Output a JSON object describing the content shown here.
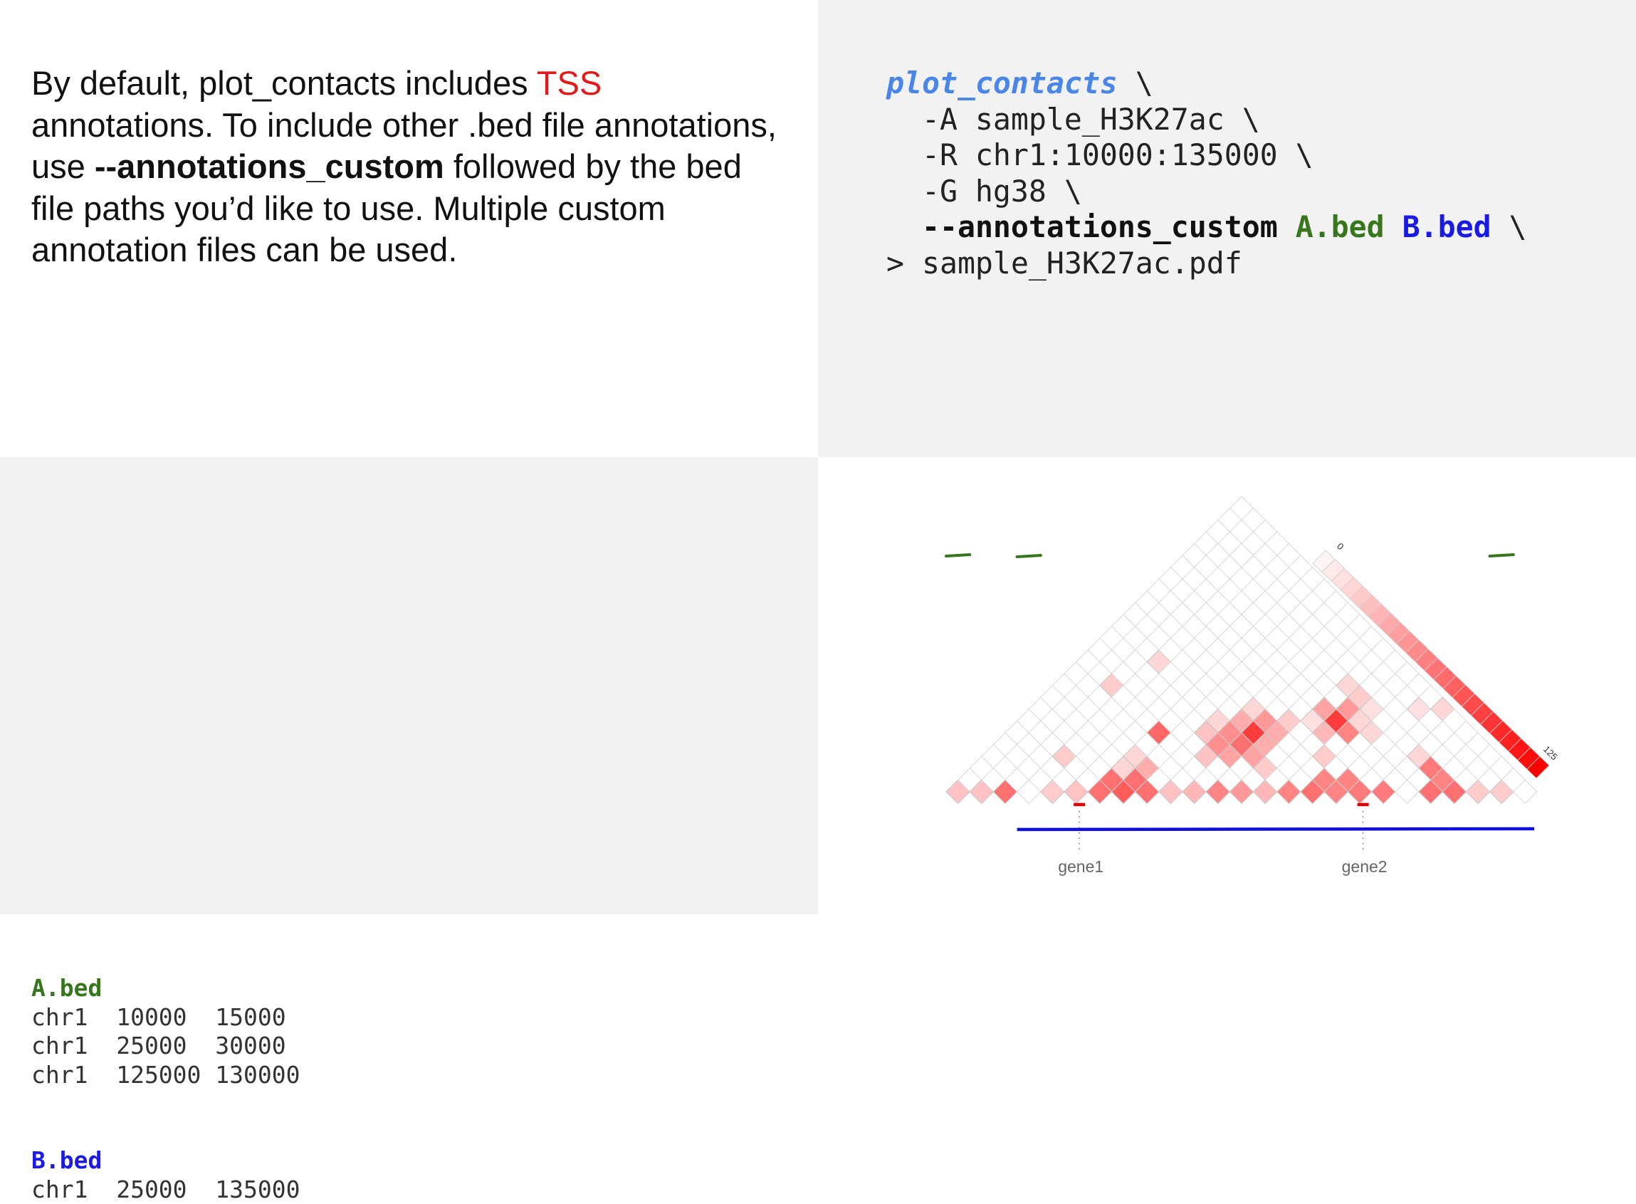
{
  "description": {
    "part1": "By default, plot_contacts includes ",
    "tss": "TSS",
    "part2": " annotations. To include other .bed file annotations, use ",
    "option": "--annotations_custom",
    "part3": " followed by the bed file paths you’d like to use. Multiple custom annotation files can be used."
  },
  "command": {
    "program": "plot_contacts",
    "cont": " \\",
    "line2": "  -A sample_H3K27ac \\",
    "line3": "  -R chr1:10000:135000 \\",
    "line4": "  -G hg38 \\",
    "line5_indent": "  ",
    "line5_option": "--annotations_custom",
    "line5_a": "A.bed",
    "line5_b": "B.bed",
    "line6": "> sample_H3K27ac.pdf"
  },
  "bed_files": {
    "a": {
      "name": "A.bed",
      "rows": [
        "chr1  10000  15000",
        "chr1  25000  30000",
        "chr1  125000 130000"
      ]
    },
    "b": {
      "name": "B.bed",
      "rows": [
        "chr1  25000  135000"
      ]
    }
  },
  "plot": {
    "colorbar_min": "0",
    "colorbar_max": "125",
    "genes": [
      "gene1",
      "gene2"
    ],
    "colors": {
      "heat": "#ff0000",
      "a_bed": "#38761d",
      "b_bed": "#1010dd",
      "tss": "#dd0000",
      "gene_label": "#666666"
    },
    "heatmap": {
      "n_bins": 25,
      "max_value": 125,
      "cells": [
        [
          0,
          0,
          30
        ],
        [
          1,
          1,
          30
        ],
        [
          2,
          2,
          70
        ],
        [
          4,
          4,
          25
        ],
        [
          5,
          5,
          30
        ],
        [
          6,
          6,
          70
        ],
        [
          7,
          7,
          80
        ],
        [
          8,
          8,
          70
        ],
        [
          9,
          9,
          30
        ],
        [
          10,
          10,
          35
        ],
        [
          11,
          11,
          60
        ],
        [
          12,
          12,
          50
        ],
        [
          13,
          13,
          35
        ],
        [
          14,
          14,
          60
        ],
        [
          15,
          15,
          70
        ],
        [
          16,
          16,
          60
        ],
        [
          17,
          17,
          65
        ],
        [
          18,
          18,
          65
        ],
        [
          20,
          20,
          70
        ],
        [
          21,
          21,
          70
        ],
        [
          22,
          22,
          25
        ],
        [
          23,
          23,
          25
        ],
        [
          6,
          7,
          70
        ],
        [
          7,
          8,
          70
        ],
        [
          15,
          16,
          60
        ],
        [
          16,
          17,
          60
        ],
        [
          20,
          21,
          60
        ],
        [
          7,
          9,
          40
        ],
        [
          6,
          8,
          20
        ],
        [
          3,
          6,
          25
        ],
        [
          6,
          11,
          75
        ],
        [
          6,
          9,
          20
        ],
        [
          12,
          14,
          25
        ],
        [
          14,
          17,
          25
        ],
        [
          13,
          18,
          35
        ],
        [
          19,
          21,
          65
        ],
        [
          9,
          12,
          30
        ],
        [
          10,
          13,
          45
        ],
        [
          11,
          14,
          45
        ],
        [
          9,
          13,
          55
        ],
        [
          10,
          14,
          70
        ],
        [
          11,
          15,
          40
        ],
        [
          8,
          13,
          30
        ],
        [
          9,
          14,
          55
        ],
        [
          10,
          15,
          95
        ],
        [
          11,
          16,
          40
        ],
        [
          8,
          14,
          20
        ],
        [
          9,
          15,
          40
        ],
        [
          10,
          16,
          50
        ],
        [
          11,
          17,
          25
        ],
        [
          9,
          16,
          20
        ],
        [
          12,
          19,
          45
        ],
        [
          14,
          21,
          15
        ],
        [
          2,
          11,
          25
        ],
        [
          15,
          20,
          20
        ],
        [
          12,
          18,
          15
        ],
        [
          3,
          14,
          20
        ],
        [
          14,
          19,
          60
        ],
        [
          13,
          19,
          95
        ],
        [
          14,
          20,
          20
        ],
        [
          13,
          20,
          50
        ],
        [
          13,
          21,
          25
        ],
        [
          12,
          21,
          20
        ],
        [
          16,
          23,
          15
        ],
        [
          18,
          21,
          20
        ],
        [
          17,
          24,
          20
        ]
      ]
    },
    "a_bed_ranges": [
      [
        10000,
        15000
      ],
      [
        25000,
        30000
      ],
      [
        125000,
        130000
      ]
    ],
    "b_bed_ranges": [
      [
        25000,
        135000
      ]
    ],
    "tss_positions": [
      40000,
      100000
    ],
    "region": [
      10000,
      135000
    ]
  }
}
